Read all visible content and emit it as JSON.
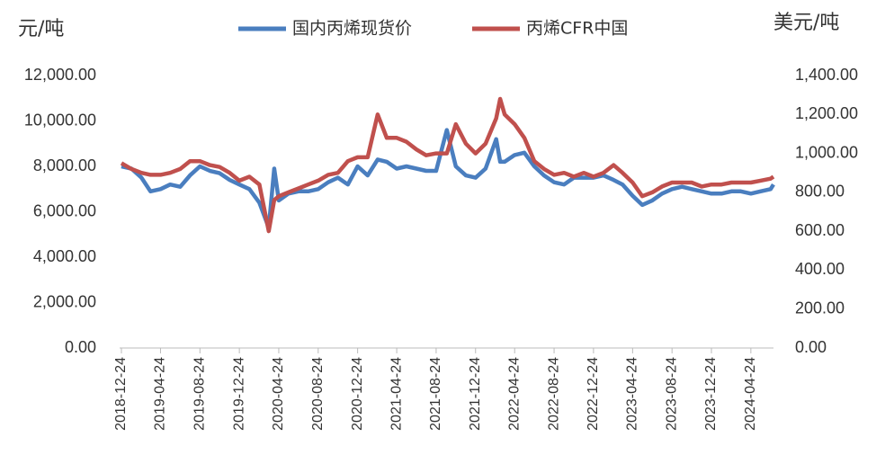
{
  "chart_data": {
    "type": "line",
    "y_label": "元/吨",
    "y2_label": "美元/吨",
    "x": [
      "2018-12-24",
      "2019-01-24",
      "2019-02-24",
      "2019-03-24",
      "2019-04-24",
      "2019-05-24",
      "2019-06-24",
      "2019-07-24",
      "2019-08-24",
      "2019-09-24",
      "2019-10-24",
      "2019-11-24",
      "2019-12-24",
      "2020-01-24",
      "2020-02-24",
      "2020-03-24",
      "2020-04-10",
      "2020-04-24",
      "2020-05-24",
      "2020-06-24",
      "2020-07-24",
      "2020-08-24",
      "2020-09-24",
      "2020-10-24",
      "2020-11-24",
      "2020-12-24",
      "2021-01-24",
      "2021-02-24",
      "2021-03-24",
      "2021-04-24",
      "2021-05-24",
      "2021-06-24",
      "2021-07-24",
      "2021-08-24",
      "2021-09-26",
      "2021-10-24",
      "2021-11-24",
      "2021-12-24",
      "2022-01-24",
      "2022-02-26",
      "2022-03-10",
      "2022-03-24",
      "2022-04-24",
      "2022-05-24",
      "2022-06-24",
      "2022-07-24",
      "2022-08-24",
      "2022-09-24",
      "2022-10-24",
      "2022-11-24",
      "2022-12-24",
      "2023-01-24",
      "2023-02-24",
      "2023-03-24",
      "2023-04-24",
      "2023-05-24",
      "2023-06-24",
      "2023-07-24",
      "2023-08-24",
      "2023-09-24",
      "2023-10-24",
      "2023-11-24",
      "2023-12-24",
      "2024-01-24",
      "2024-02-24",
      "2024-03-24",
      "2024-04-24",
      "2024-05-24",
      "2024-06-24",
      "2024-07-03"
    ],
    "xlim": [
      "2018-12-24",
      "2024-07-03"
    ],
    "xticks": [
      "2018-12-24",
      "2019-04-24",
      "2019-08-24",
      "2019-12-24",
      "2020-04-24",
      "2020-08-24",
      "2020-12-24",
      "2021-04-24",
      "2021-08-24",
      "2021-12-24",
      "2022-04-24",
      "2022-08-24",
      "2022-12-24",
      "2023-04-24",
      "2023-08-24",
      "2023-12-24",
      "2024-04-24"
    ],
    "series": [
      {
        "name": "国内丙烯现货价",
        "color": "#4a7ebf",
        "axis": "y",
        "values": [
          8000,
          7900,
          7500,
          6900,
          7000,
          7200,
          7100,
          7600,
          8000,
          7800,
          7700,
          7400,
          7200,
          7000,
          6400,
          5300,
          7900,
          6500,
          6800,
          6900,
          6900,
          7000,
          7300,
          7500,
          7200,
          8000,
          7600,
          8300,
          8200,
          7900,
          8000,
          7900,
          7800,
          7800,
          9600,
          8000,
          7600,
          7500,
          7900,
          9200,
          8200,
          8200,
          8500,
          8600,
          8000,
          7600,
          7300,
          7200,
          7500,
          7500,
          7500,
          7600,
          7400,
          7200,
          6700,
          6300,
          6500,
          6800,
          7000,
          7100,
          7000,
          6900,
          6800,
          6800,
          6900,
          6900,
          6800,
          6900,
          7000,
          7200
        ]
      },
      {
        "name": "丙烯CFR中国",
        "color": "#c0504d",
        "axis": "y2",
        "values": [
          950,
          920,
          900,
          890,
          890,
          900,
          920,
          960,
          960,
          940,
          930,
          900,
          860,
          880,
          840,
          600,
          760,
          780,
          800,
          820,
          840,
          860,
          890,
          900,
          960,
          980,
          980,
          1200,
          1080,
          1080,
          1060,
          1020,
          990,
          1000,
          1000,
          1150,
          1050,
          1000,
          1050,
          1180,
          1280,
          1200,
          1150,
          1080,
          960,
          920,
          890,
          900,
          880,
          900,
          880,
          900,
          940,
          900,
          850,
          780,
          800,
          830,
          850,
          850,
          850,
          830,
          840,
          840,
          850,
          850,
          850,
          860,
          870,
          880
        ]
      }
    ],
    "ylim": [
      0,
      12000
    ],
    "yticks": [
      {
        "value": 0,
        "label": "0.00"
      },
      {
        "value": 2000,
        "label": "2,000.00"
      },
      {
        "value": 4000,
        "label": "4,000.00"
      },
      {
        "value": 6000,
        "label": "6,000.00"
      },
      {
        "value": 8000,
        "label": "8,000.00"
      },
      {
        "value": 10000,
        "label": "10,000.00"
      },
      {
        "value": 12000,
        "label": "12,000.00"
      }
    ],
    "y2lim": [
      0,
      1400
    ],
    "y2ticks": [
      {
        "value": 0,
        "label": "0.00"
      },
      {
        "value": 200,
        "label": "200.00"
      },
      {
        "value": 400,
        "label": "400.00"
      },
      {
        "value": 600,
        "label": "600.00"
      },
      {
        "value": 800,
        "label": "800.00"
      },
      {
        "value": 1000,
        "label": "1,000.00"
      },
      {
        "value": 1200,
        "label": "1,200.00"
      },
      {
        "value": 1400,
        "label": "1,400.00"
      }
    ],
    "grid": false,
    "legend": "top"
  }
}
